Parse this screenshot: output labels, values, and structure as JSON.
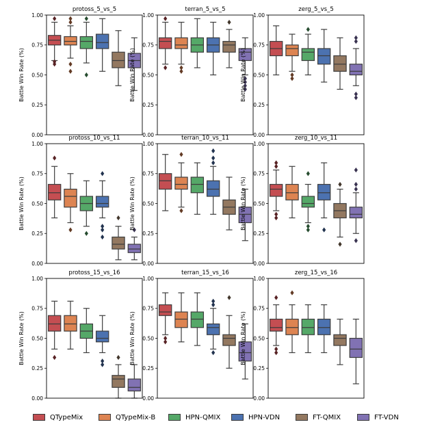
{
  "colors": {
    "QTypeMix": "#c44e52",
    "QTypeMix-B": "#dd8452",
    "HPN-QMIX": "#55a868",
    "HPN-VDN": "#4c72b0",
    "FT-QMIX": "#937860",
    "FT-VDN": "#8172b3"
  },
  "legend": [
    "QTypeMix",
    "QTypeMix-B",
    "HPN-QMIX",
    "HPN-VDN",
    "FT-QMIX",
    "FT-VDN"
  ],
  "chart_data": [
    {
      "type": "box",
      "title": "protoss_5_vs_5",
      "ylabel": "Battle Win Rate (%)",
      "ylim": [
        0,
        1
      ],
      "yticks": [
        "0.00",
        "0.25",
        "0.50",
        "0.75",
        "1.00"
      ],
      "series": [
        {
          "name": "QTypeMix",
          "whislo": 0.62,
          "q1": 0.75,
          "med": 0.79,
          "q3": 0.83,
          "whishi": 0.94,
          "fliers": [
            0.59,
            0.61,
            0.97
          ]
        },
        {
          "name": "QTypeMix-B",
          "whislo": 0.64,
          "q1": 0.75,
          "med": 0.78,
          "q3": 0.82,
          "whishi": 0.91,
          "fliers": [
            0.53,
            0.59,
            0.94,
            0.97
          ]
        },
        {
          "name": "HPN-QMIX",
          "whislo": 0.6,
          "q1": 0.72,
          "med": 0.78,
          "q3": 0.82,
          "whishi": 0.94,
          "fliers": [
            0.5,
            0.97
          ]
        },
        {
          "name": "HPN-VDN",
          "whislo": 0.53,
          "q1": 0.72,
          "med": 0.77,
          "q3": 0.84,
          "whishi": 0.97,
          "fliers": []
        },
        {
          "name": "FT-QMIX",
          "whislo": 0.41,
          "q1": 0.56,
          "med": 0.62,
          "q3": 0.69,
          "whishi": 0.87,
          "fliers": []
        },
        {
          "name": "FT-VDN",
          "whislo": 0.37,
          "q1": 0.56,
          "med": 0.62,
          "q3": 0.68,
          "whishi": 0.81,
          "fliers": []
        }
      ]
    },
    {
      "type": "box",
      "title": "terran_5_vs_5",
      "ylabel": "Battle Win Rate (%)",
      "ylim": [
        0,
        1
      ],
      "yticks": [
        "0.00",
        "0.25",
        "0.50",
        "0.75",
        "1.00"
      ],
      "series": [
        {
          "name": "QTypeMix",
          "whislo": 0.59,
          "q1": 0.72,
          "med": 0.78,
          "q3": 0.81,
          "whishi": 0.94,
          "fliers": [
            0.56,
            0.97
          ]
        },
        {
          "name": "QTypeMix-B",
          "whislo": 0.59,
          "q1": 0.72,
          "med": 0.75,
          "q3": 0.81,
          "whishi": 0.94,
          "fliers": [
            0.53,
            0.56
          ]
        },
        {
          "name": "HPN-QMIX",
          "whislo": 0.56,
          "q1": 0.69,
          "med": 0.75,
          "q3": 0.81,
          "whishi": 0.97,
          "fliers": []
        },
        {
          "name": "HPN-VDN",
          "whislo": 0.5,
          "q1": 0.69,
          "med": 0.75,
          "q3": 0.81,
          "whishi": 0.94,
          "fliers": []
        },
        {
          "name": "FT-QMIX",
          "whislo": 0.56,
          "q1": 0.69,
          "med": 0.75,
          "q3": 0.78,
          "whishi": 0.88,
          "fliers": [
            0.94
          ]
        },
        {
          "name": "FT-VDN",
          "whislo": 0.5,
          "q1": 0.62,
          "med": 0.69,
          "q3": 0.72,
          "whishi": 0.81,
          "fliers": [
            0.38,
            0.41,
            0.44,
            0.47
          ]
        }
      ]
    },
    {
      "type": "box",
      "title": "zerg_5_vs_5",
      "ylabel": "Battle Win Rate (%)",
      "ylim": [
        0,
        1
      ],
      "yticks": [
        "0.00",
        "0.25",
        "0.50",
        "0.75",
        "1.00"
      ],
      "series": [
        {
          "name": "QTypeMix",
          "whislo": 0.5,
          "q1": 0.66,
          "med": 0.72,
          "q3": 0.78,
          "whishi": 0.91,
          "fliers": []
        },
        {
          "name": "QTypeMix-B",
          "whislo": 0.53,
          "q1": 0.66,
          "med": 0.72,
          "q3": 0.75,
          "whishi": 0.84,
          "fliers": [
            0.47,
            0.5
          ]
        },
        {
          "name": "HPN-QMIX",
          "whislo": 0.5,
          "q1": 0.62,
          "med": 0.69,
          "q3": 0.72,
          "whishi": 0.84,
          "fliers": [
            0.88
          ]
        },
        {
          "name": "HPN-VDN",
          "whislo": 0.44,
          "q1": 0.59,
          "med": 0.66,
          "q3": 0.72,
          "whishi": 0.88,
          "fliers": []
        },
        {
          "name": "FT-QMIX",
          "whislo": 0.38,
          "q1": 0.53,
          "med": 0.59,
          "q3": 0.66,
          "whishi": 0.81,
          "fliers": []
        },
        {
          "name": "FT-VDN",
          "whislo": 0.41,
          "q1": 0.5,
          "med": 0.53,
          "q3": 0.59,
          "whishi": 0.72,
          "fliers": [
            0.31,
            0.34,
            0.78,
            0.81
          ]
        }
      ]
    },
    {
      "type": "box",
      "title": "protoss_10_vs_11",
      "ylabel": "Battle Win Rate (%)",
      "ylim": [
        0,
        1
      ],
      "yticks": [
        "0.00",
        "0.25",
        "0.50",
        "0.75",
        "1.00"
      ],
      "series": [
        {
          "name": "QTypeMix",
          "whislo": 0.38,
          "q1": 0.53,
          "med": 0.59,
          "q3": 0.66,
          "whishi": 0.81,
          "fliers": [
            0.88
          ]
        },
        {
          "name": "QTypeMix-B",
          "whislo": 0.34,
          "q1": 0.47,
          "med": 0.56,
          "q3": 0.62,
          "whishi": 0.75,
          "fliers": [
            0.28
          ]
        },
        {
          "name": "HPN-QMIX",
          "whislo": 0.31,
          "q1": 0.44,
          "med": 0.5,
          "q3": 0.56,
          "whishi": 0.69,
          "fliers": [
            0.25
          ]
        },
        {
          "name": "HPN-VDN",
          "whislo": 0.38,
          "q1": 0.47,
          "med": 0.5,
          "q3": 0.56,
          "whishi": 0.69,
          "fliers": [
            0.22,
            0.28,
            0.31,
            0.75
          ]
        },
        {
          "name": "FT-QMIX",
          "whislo": 0.03,
          "q1": 0.12,
          "med": 0.16,
          "q3": 0.22,
          "whishi": 0.31,
          "fliers": [
            0.38
          ]
        },
        {
          "name": "FT-VDN",
          "whislo": 0.03,
          "q1": 0.09,
          "med": 0.12,
          "q3": 0.16,
          "whishi": 0.22,
          "fliers": [
            0.28
          ]
        }
      ]
    },
    {
      "type": "box",
      "title": "terran_10_vs_11",
      "ylabel": "Battle Win Rate (%)",
      "ylim": [
        0,
        1
      ],
      "yticks": [
        "0.00",
        "0.25",
        "0.50",
        "0.75",
        "1.00"
      ],
      "series": [
        {
          "name": "QTypeMix",
          "whislo": 0.44,
          "q1": 0.62,
          "med": 0.69,
          "q3": 0.75,
          "whishi": 0.91,
          "fliers": []
        },
        {
          "name": "QTypeMix-B",
          "whislo": 0.47,
          "q1": 0.62,
          "med": 0.66,
          "q3": 0.72,
          "whishi": 0.84,
          "fliers": [
            0.44,
            0.91
          ]
        },
        {
          "name": "HPN-QMIX",
          "whislo": 0.41,
          "q1": 0.59,
          "med": 0.66,
          "q3": 0.72,
          "whishi": 0.84,
          "fliers": []
        },
        {
          "name": "HPN-VDN",
          "whislo": 0.41,
          "q1": 0.56,
          "med": 0.62,
          "q3": 0.69,
          "whishi": 0.81,
          "fliers": [
            0.84,
            0.88,
            0.94
          ]
        },
        {
          "name": "FT-QMIX",
          "whislo": 0.28,
          "q1": 0.41,
          "med": 0.47,
          "q3": 0.53,
          "whishi": 0.72,
          "fliers": []
        },
        {
          "name": "FT-VDN",
          "whislo": 0.19,
          "q1": 0.34,
          "med": 0.41,
          "q3": 0.47,
          "whishi": 0.62,
          "fliers": []
        }
      ]
    },
    {
      "type": "box",
      "title": "zerg_10_vs_11",
      "ylabel": "Battle Win Rate (%)",
      "ylim": [
        0,
        1
      ],
      "yticks": [
        "0.00",
        "0.25",
        "0.50",
        "0.75",
        "1.00"
      ],
      "series": [
        {
          "name": "QTypeMix",
          "whislo": 0.44,
          "q1": 0.56,
          "med": 0.62,
          "q3": 0.66,
          "whishi": 0.78,
          "fliers": [
            0.38,
            0.41,
            0.81,
            0.84
          ]
        },
        {
          "name": "QTypeMix-B",
          "whislo": 0.38,
          "q1": 0.53,
          "med": 0.59,
          "q3": 0.66,
          "whishi": 0.81,
          "fliers": []
        },
        {
          "name": "HPN-QMIX",
          "whislo": 0.34,
          "q1": 0.47,
          "med": 0.5,
          "q3": 0.56,
          "whishi": 0.66,
          "fliers": [
            0.28,
            0.31,
            0.75
          ]
        },
        {
          "name": "HPN-VDN",
          "whislo": 0.38,
          "q1": 0.53,
          "med": 0.59,
          "q3": 0.66,
          "whishi": 0.84,
          "fliers": [
            0.28
          ]
        },
        {
          "name": "FT-QMIX",
          "whislo": 0.22,
          "q1": 0.38,
          "med": 0.44,
          "q3": 0.5,
          "whishi": 0.62,
          "fliers": [
            0.16,
            0.66
          ]
        },
        {
          "name": "FT-VDN",
          "whislo": 0.25,
          "q1": 0.38,
          "med": 0.41,
          "q3": 0.47,
          "whishi": 0.59,
          "fliers": [
            0.19,
            0.62,
            0.66,
            0.78
          ]
        }
      ]
    },
    {
      "type": "box",
      "title": "protoss_15_vs_16",
      "ylabel": "Battle Win Rate (%)",
      "ylim": [
        0,
        1
      ],
      "yticks": [
        "0.00",
        "0.25",
        "0.50",
        "0.75",
        "1.00"
      ],
      "series": [
        {
          "name": "QTypeMix",
          "whislo": 0.41,
          "q1": 0.56,
          "med": 0.62,
          "q3": 0.69,
          "whishi": 0.81,
          "fliers": [
            0.34
          ]
        },
        {
          "name": "QTypeMix-B",
          "whislo": 0.41,
          "q1": 0.56,
          "med": 0.62,
          "q3": 0.69,
          "whishi": 0.81,
          "fliers": []
        },
        {
          "name": "HPN-QMIX",
          "whislo": 0.38,
          "q1": 0.5,
          "med": 0.56,
          "q3": 0.62,
          "whishi": 0.75,
          "fliers": []
        },
        {
          "name": "HPN-VDN",
          "whislo": 0.38,
          "q1": 0.47,
          "med": 0.5,
          "q3": 0.56,
          "whishi": 0.69,
          "fliers": [
            0.28,
            0.31
          ]
        },
        {
          "name": "FT-QMIX",
          "whislo": 0.0,
          "q1": 0.09,
          "med": 0.16,
          "q3": 0.19,
          "whishi": 0.28,
          "fliers": [
            0.34
          ]
        },
        {
          "name": "FT-VDN",
          "whislo": 0.0,
          "q1": 0.06,
          "med": 0.09,
          "q3": 0.16,
          "whishi": 0.28,
          "fliers": []
        }
      ]
    },
    {
      "type": "box",
      "title": "terran_15_vs_16",
      "ylabel": "Battle Win Rate (%)",
      "ylim": [
        0,
        1
      ],
      "yticks": [
        "0.00",
        "0.25",
        "0.50",
        "0.75",
        "1.00"
      ],
      "series": [
        {
          "name": "QTypeMix",
          "whislo": 0.53,
          "q1": 0.69,
          "med": 0.72,
          "q3": 0.78,
          "whishi": 0.88,
          "fliers": [
            0.47,
            0.5
          ]
        },
        {
          "name": "QTypeMix-B",
          "whislo": 0.47,
          "q1": 0.59,
          "med": 0.66,
          "q3": 0.72,
          "whishi": 0.88,
          "fliers": []
        },
        {
          "name": "HPN-QMIX",
          "whislo": 0.44,
          "q1": 0.59,
          "med": 0.66,
          "q3": 0.72,
          "whishi": 0.88,
          "fliers": []
        },
        {
          "name": "HPN-VDN",
          "whislo": 0.41,
          "q1": 0.53,
          "med": 0.59,
          "q3": 0.62,
          "whishi": 0.75,
          "fliers": [
            0.38,
            0.78,
            0.81
          ]
        },
        {
          "name": "FT-QMIX",
          "whislo": 0.25,
          "q1": 0.44,
          "med": 0.5,
          "q3": 0.53,
          "whishi": 0.69,
          "fliers": [
            0.84
          ]
        },
        {
          "name": "FT-VDN",
          "whislo": 0.16,
          "q1": 0.31,
          "med": 0.38,
          "q3": 0.47,
          "whishi": 0.62,
          "fliers": []
        }
      ]
    },
    {
      "type": "box",
      "title": "zerg_15_vs_16",
      "ylabel": "Battle Win Rate (%)",
      "ylim": [
        0,
        1
      ],
      "yticks": [
        "0.00",
        "0.25",
        "0.50",
        "0.75",
        "1.00"
      ],
      "series": [
        {
          "name": "QTypeMix",
          "whislo": 0.44,
          "q1": 0.56,
          "med": 0.59,
          "q3": 0.66,
          "whishi": 0.78,
          "fliers": [
            0.38,
            0.41,
            0.84
          ]
        },
        {
          "name": "QTypeMix-B",
          "whislo": 0.38,
          "q1": 0.53,
          "med": 0.59,
          "q3": 0.66,
          "whishi": 0.78,
          "fliers": [
            0.88
          ]
        },
        {
          "name": "HPN-QMIX",
          "whislo": 0.38,
          "q1": 0.53,
          "med": 0.59,
          "q3": 0.66,
          "whishi": 0.78,
          "fliers": []
        },
        {
          "name": "HPN-VDN",
          "whislo": 0.38,
          "q1": 0.53,
          "med": 0.59,
          "q3": 0.66,
          "whishi": 0.78,
          "fliers": []
        },
        {
          "name": "FT-QMIX",
          "whislo": 0.28,
          "q1": 0.44,
          "med": 0.5,
          "q3": 0.53,
          "whishi": 0.66,
          "fliers": []
        },
        {
          "name": "FT-VDN",
          "whislo": 0.12,
          "q1": 0.34,
          "med": 0.41,
          "q3": 0.5,
          "whishi": 0.66,
          "fliers": []
        }
      ]
    }
  ]
}
